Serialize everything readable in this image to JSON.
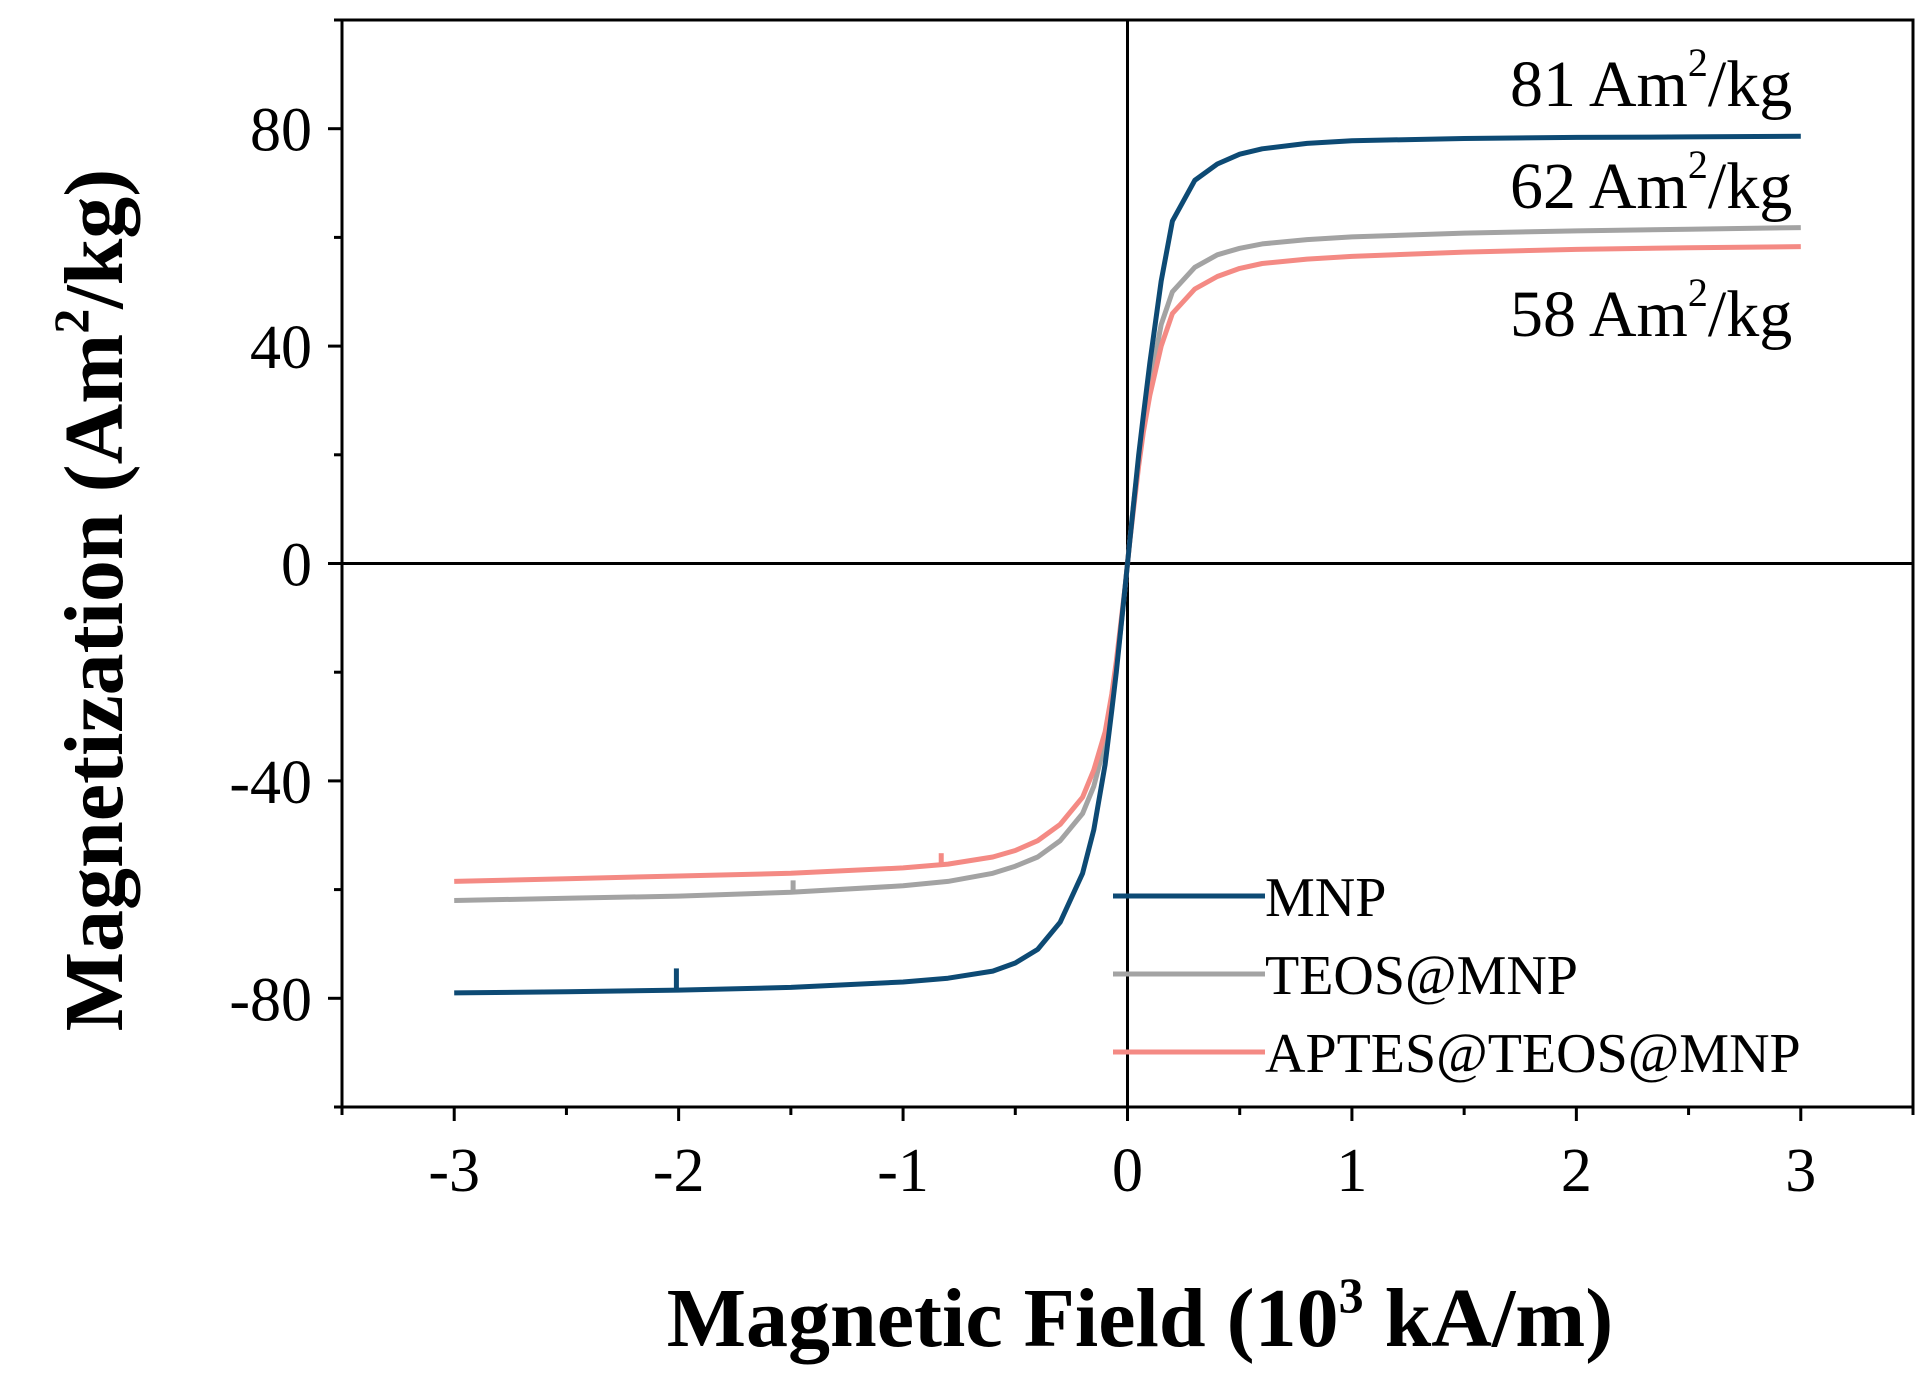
{
  "chart_data": {
    "type": "line",
    "title": "",
    "xlabel": "Magnetic Field (10",
    "xlabel_sup": "3",
    "xlabel_end": " kA/m)",
    "ylabel": "Magnetization (Am",
    "ylabel_sup": "2",
    "ylabel_end": "/kg)",
    "xlim": [
      -3.5,
      3.5
    ],
    "ylim": [
      -100,
      100
    ],
    "x_ticks": [
      "-3",
      "-2",
      "-1",
      "0",
      "1",
      "2",
      "3"
    ],
    "y_ticks": [
      "-80",
      "-40",
      "0",
      "40",
      "80"
    ],
    "x_major_values": [
      -3,
      -2,
      -1,
      0,
      1,
      2,
      3
    ],
    "x_minor_values": [
      -3.5,
      -2.5,
      -1.5,
      -0.5,
      0.5,
      1.5,
      2.5,
      3.5
    ],
    "y_major_values": [
      -80,
      -40,
      0,
      40,
      80
    ],
    "y_minor_values": [
      -100,
      -60,
      -20,
      20,
      60,
      100
    ],
    "zero_lines": true,
    "grid": false,
    "legend_position": "bottom-right",
    "series": [
      {
        "name": "MNP",
        "color": "#0d4a74",
        "x": [
          -3,
          -2.5,
          -2,
          -1.5,
          -1,
          -0.8,
          -0.6,
          -0.5,
          -0.4,
          -0.3,
          -0.2,
          -0.15,
          -0.1,
          -0.07,
          -0.05,
          -0.03,
          -0.01,
          0,
          0.01,
          0.03,
          0.05,
          0.07,
          0.1,
          0.15,
          0.2,
          0.3,
          0.4,
          0.5,
          0.6,
          0.8,
          1,
          1.5,
          2,
          2.5,
          3
        ],
        "y": [
          -79,
          -78.8,
          -78.5,
          -78,
          -77,
          -76.3,
          -75,
          -73.5,
          -71,
          -66,
          -57,
          -49,
          -37,
          -27,
          -20,
          -12,
          -4,
          0,
          4,
          12,
          20,
          27,
          37,
          52,
          63,
          70.5,
          73.5,
          75.3,
          76.3,
          77.3,
          77.8,
          78.2,
          78.4,
          78.5,
          78.6
        ]
      },
      {
        "name": "TEOS@MNP",
        "color": "#a3a3a3",
        "x": [
          -3,
          -2.5,
          -2,
          -1.5,
          -1,
          -0.8,
          -0.6,
          -0.5,
          -0.4,
          -0.3,
          -0.2,
          -0.15,
          -0.1,
          -0.07,
          -0.05,
          -0.03,
          -0.01,
          0,
          0.01,
          0.03,
          0.05,
          0.07,
          0.1,
          0.15,
          0.2,
          0.3,
          0.4,
          0.5,
          0.6,
          0.8,
          1,
          1.5,
          2,
          2.5,
          3
        ],
        "y": [
          -62,
          -61.6,
          -61.2,
          -60.5,
          -59.3,
          -58.5,
          -57,
          -55.7,
          -54,
          -51,
          -46,
          -41,
          -33,
          -25,
          -19,
          -12,
          -4,
          0,
          4,
          12,
          19,
          25,
          33,
          44,
          50,
          54.5,
          56.8,
          58,
          58.8,
          59.6,
          60.1,
          60.8,
          61.2,
          61.5,
          61.8
        ]
      },
      {
        "name": "APTES@TEOS@MNP",
        "color": "#f48a84",
        "x": [
          -3,
          -2.5,
          -2,
          -1.5,
          -1,
          -0.8,
          -0.6,
          -0.5,
          -0.4,
          -0.3,
          -0.2,
          -0.15,
          -0.1,
          -0.07,
          -0.05,
          -0.03,
          -0.01,
          0,
          0.01,
          0.03,
          0.05,
          0.07,
          0.1,
          0.15,
          0.2,
          0.3,
          0.4,
          0.5,
          0.6,
          0.8,
          1,
          1.5,
          2,
          2.5,
          3
        ],
        "y": [
          -58.5,
          -58,
          -57.5,
          -57,
          -56,
          -55.3,
          -54,
          -52.8,
          -51,
          -48,
          -43,
          -38,
          -31,
          -24,
          -18,
          -11,
          -4,
          0,
          4,
          11,
          18,
          24,
          31,
          40,
          46,
          50.5,
          52.8,
          54.3,
          55.2,
          56,
          56.5,
          57.3,
          57.8,
          58.1,
          58.3
        ]
      }
    ],
    "spikes": [
      {
        "series": "MNP",
        "x": -2.01,
        "y_from": -78.5,
        "y_to": -74.5
      },
      {
        "series": "TEOS@MNP",
        "x": -1.49,
        "y_from": -60.5,
        "y_to": -58.3
      },
      {
        "series": "APTES@TEOS@MNP",
        "x": -0.83,
        "y_from": -55.5,
        "y_to": -53.3
      }
    ],
    "annotations": [
      {
        "series": "MNP",
        "text": "81 Am",
        "sup": "2",
        "tail": "/kg"
      },
      {
        "series": "TEOS@MNP",
        "text": "62 Am",
        "sup": "2",
        "tail": "/kg"
      },
      {
        "series": "APTES@TEOS@MNP",
        "text": "58 Am",
        "sup": "2",
        "tail": "/kg"
      }
    ]
  }
}
